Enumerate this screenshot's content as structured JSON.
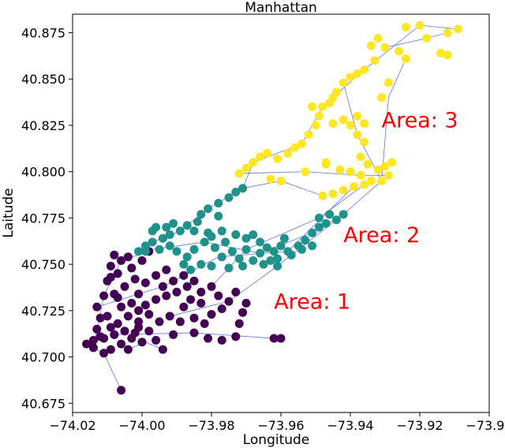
{
  "chart_data": {
    "type": "scatter",
    "title": "Manhattan",
    "xlabel": "Longitude",
    "ylabel": "Laitude",
    "xlim": [
      -74.02,
      -73.9
    ],
    "ylim": [
      40.67,
      40.885
    ],
    "xticks": [
      -74.02,
      -74.0,
      -73.98,
      -73.96,
      -73.94,
      -73.92,
      -73.9
    ],
    "xtick_labels": [
      "−74.02",
      "−74.00",
      "−73.98",
      "−73.96",
      "−73.94",
      "−73.92",
      "−73.90"
    ],
    "yticks": [
      40.675,
      40.7,
      40.725,
      40.75,
      40.775,
      40.8,
      40.825,
      40.85,
      40.875
    ],
    "ytick_labels": [
      "40.675",
      "40.700",
      "40.725",
      "40.750",
      "40.775",
      "40.800",
      "40.825",
      "40.850",
      "40.875"
    ],
    "grid": false,
    "route_color": "#4f5fe0",
    "series": [
      {
        "color": "#440154",
        "points": [
          [
            -74.006,
            40.682
          ],
          [
            -74.016,
            40.707
          ],
          [
            -74.014,
            40.709
          ],
          [
            -74.012,
            40.711
          ],
          [
            -74.014,
            40.705
          ],
          [
            -74.013,
            40.715
          ],
          [
            -74.011,
            40.71
          ],
          [
            -74.009,
            40.716
          ],
          [
            -74.012,
            40.721
          ],
          [
            -74.013,
            40.727
          ],
          [
            -74.01,
            40.722
          ],
          [
            -74.011,
            40.733
          ],
          [
            -74.008,
            40.734
          ],
          [
            -74.01,
            40.741
          ],
          [
            -74.007,
            40.745
          ],
          [
            -74.009,
            40.749
          ],
          [
            -74.006,
            40.752
          ],
          [
            -74.008,
            40.755
          ],
          [
            -74.004,
            40.754
          ],
          [
            -74.003,
            40.748
          ],
          [
            -74.0,
            40.752
          ],
          [
            -73.998,
            40.757
          ],
          [
            -74.005,
            40.738
          ],
          [
            -74.002,
            40.742
          ],
          [
            -74.001,
            40.734
          ],
          [
            -73.999,
            40.74
          ],
          [
            -73.996,
            40.744
          ],
          [
            -73.993,
            40.747
          ],
          [
            -73.994,
            40.738
          ],
          [
            -73.991,
            40.741
          ],
          [
            -73.988,
            40.744
          ],
          [
            -73.99,
            40.735
          ],
          [
            -73.987,
            40.738
          ],
          [
            -73.985,
            40.741
          ],
          [
            -73.983,
            40.735
          ],
          [
            -73.98,
            40.738
          ],
          [
            -73.978,
            40.733
          ],
          [
            -73.975,
            40.73
          ],
          [
            -73.973,
            40.735
          ],
          [
            -73.977,
            40.726
          ],
          [
            -73.983,
            40.729
          ],
          [
            -73.986,
            40.731
          ],
          [
            -73.996,
            40.731
          ],
          [
            -74.003,
            40.729
          ],
          [
            -74.006,
            40.727
          ],
          [
            -74.004,
            40.722
          ],
          [
            -74.001,
            40.725
          ],
          [
            -73.998,
            40.723
          ],
          [
            -73.995,
            40.719
          ],
          [
            -73.992,
            40.722
          ],
          [
            -73.989,
            40.719
          ],
          [
            -73.985,
            40.721
          ],
          [
            -73.982,
            40.718
          ],
          [
            -74.007,
            40.718
          ],
          [
            -74.005,
            40.714
          ],
          [
            -74.001,
            40.716
          ],
          [
            -73.998,
            40.714
          ],
          [
            -74.008,
            40.712
          ],
          [
            -74.003,
            40.71
          ],
          [
            -74.0,
            40.708
          ],
          [
            -73.996,
            40.709
          ],
          [
            -73.991,
            40.712
          ],
          [
            -73.985,
            40.713
          ],
          [
            -73.981,
            40.71
          ],
          [
            -73.977,
            40.709
          ],
          [
            -73.973,
            40.711
          ],
          [
            -73.972,
            40.718
          ],
          [
            -73.971,
            40.724
          ],
          [
            -73.97,
            40.729
          ],
          [
            -73.962,
            40.71
          ],
          [
            -73.96,
            40.71
          ],
          [
            -73.994,
            40.704
          ],
          [
            -74.011,
            40.702
          ],
          [
            -74.009,
            40.704
          ],
          [
            -74.006,
            40.707
          ],
          [
            -74.004,
            40.704
          ],
          [
            -74.002,
            40.713
          ],
          [
            -73.999,
            40.728
          ],
          [
            -73.993,
            40.733
          ],
          [
            -73.98,
            40.723
          ],
          [
            -74.007,
            40.732
          ],
          [
            -74.009,
            40.743
          ],
          [
            -74.001,
            40.719
          ],
          [
            -73.988,
            40.727
          ]
        ]
      },
      {
        "color": "#21918c",
        "points": [
          [
            -74.001,
            40.757
          ],
          [
            -73.999,
            40.76
          ],
          [
            -73.997,
            40.762
          ],
          [
            -73.994,
            40.764
          ],
          [
            -73.995,
            40.758
          ],
          [
            -73.992,
            40.76
          ],
          [
            -73.99,
            40.757
          ],
          [
            -73.987,
            40.754
          ],
          [
            -73.985,
            40.758
          ],
          [
            -73.982,
            40.762
          ],
          [
            -73.98,
            40.765
          ],
          [
            -73.979,
            40.759
          ],
          [
            -73.976,
            40.762
          ],
          [
            -73.977,
            40.754
          ],
          [
            -73.974,
            40.757
          ],
          [
            -73.972,
            40.753
          ],
          [
            -73.975,
            40.748
          ],
          [
            -73.971,
            40.749
          ],
          [
            -73.968,
            40.752
          ],
          [
            -73.966,
            40.756
          ],
          [
            -73.964,
            40.759
          ],
          [
            -73.962,
            40.757
          ],
          [
            -73.96,
            40.76
          ],
          [
            -73.958,
            40.757
          ],
          [
            -73.961,
            40.753
          ],
          [
            -73.957,
            40.755
          ],
          [
            -73.955,
            40.76
          ],
          [
            -73.953,
            40.763
          ],
          [
            -73.951,
            40.767
          ],
          [
            -73.949,
            40.77
          ],
          [
            -73.947,
            40.772
          ],
          [
            -73.944,
            40.774
          ],
          [
            -73.942,
            40.777
          ],
          [
            -73.949,
            40.775
          ],
          [
            -73.946,
            40.777
          ],
          [
            -73.951,
            40.76
          ],
          [
            -73.965,
            40.75
          ],
          [
            -73.961,
            40.749
          ],
          [
            -73.989,
            40.768
          ],
          [
            -73.987,
            40.771
          ],
          [
            -73.984,
            40.773
          ],
          [
            -73.983,
            40.777
          ],
          [
            -73.981,
            40.78
          ],
          [
            -73.978,
            40.783
          ],
          [
            -73.975,
            40.786
          ],
          [
            -73.973,
            40.789
          ],
          [
            -73.971,
            40.791
          ],
          [
            -73.991,
            40.772
          ],
          [
            -73.993,
            40.77
          ],
          [
            -73.996,
            40.77
          ],
          [
            -73.985,
            40.768
          ],
          [
            -73.981,
            40.767
          ],
          [
            -73.977,
            40.768
          ],
          [
            -73.973,
            40.766
          ],
          [
            -73.97,
            40.764
          ],
          [
            -73.968,
            40.766
          ],
          [
            -73.966,
            40.762
          ],
          [
            -73.983,
            40.75
          ],
          [
            -73.98,
            40.749
          ],
          [
            -73.988,
            40.75
          ],
          [
            -73.986,
            40.747
          ],
          [
            -73.97,
            40.758
          ],
          [
            -73.997,
            40.768
          ],
          [
            -73.959,
            40.764
          ],
          [
            -73.954,
            40.758
          ],
          [
            -73.999,
            40.757
          ],
          [
            -73.992,
            40.766
          ],
          [
            -73.978,
            40.776
          ],
          [
            -73.963,
            40.752
          ]
        ]
      },
      {
        "color": "#fde725",
        "points": [
          [
            -73.972,
            40.799
          ],
          [
            -73.97,
            40.802
          ],
          [
            -73.968,
            40.805
          ],
          [
            -73.966,
            40.808
          ],
          [
            -73.964,
            40.81
          ],
          [
            -73.961,
            40.807
          ],
          [
            -73.963,
            40.796
          ],
          [
            -73.96,
            40.795
          ],
          [
            -73.958,
            40.81
          ],
          [
            -73.956,
            40.813
          ],
          [
            -73.954,
            40.815
          ],
          [
            -73.952,
            40.82
          ],
          [
            -73.95,
            40.825
          ],
          [
            -73.949,
            40.83
          ],
          [
            -73.948,
            40.835
          ],
          [
            -73.946,
            40.837
          ],
          [
            -73.945,
            40.84
          ],
          [
            -73.944,
            40.843
          ],
          [
            -73.942,
            40.848
          ],
          [
            -73.94,
            40.851
          ],
          [
            -73.938,
            40.853
          ],
          [
            -73.936,
            40.855
          ],
          [
            -73.94,
            40.825
          ],
          [
            -73.942,
            40.828
          ],
          [
            -73.945,
            40.826
          ],
          [
            -73.938,
            40.83
          ],
          [
            -73.936,
            40.826
          ],
          [
            -73.938,
            40.82
          ],
          [
            -73.936,
            40.816
          ],
          [
            -73.937,
            40.808
          ],
          [
            -73.935,
            40.804
          ],
          [
            -73.932,
            40.801
          ],
          [
            -73.93,
            40.803
          ],
          [
            -73.929,
            40.798
          ],
          [
            -73.931,
            40.795
          ],
          [
            -73.934,
            40.795
          ],
          [
            -73.937,
            40.798
          ],
          [
            -73.94,
            40.8
          ],
          [
            -73.943,
            40.801
          ],
          [
            -73.947,
            40.804
          ],
          [
            -73.953,
            40.8
          ],
          [
            -73.948,
            40.787
          ],
          [
            -73.945,
            40.788
          ],
          [
            -73.942,
            40.79
          ],
          [
            -73.939,
            40.792
          ],
          [
            -73.936,
            40.793
          ],
          [
            -73.931,
            40.84
          ],
          [
            -73.929,
            40.848
          ],
          [
            -73.934,
            40.868
          ],
          [
            -73.932,
            40.872
          ],
          [
            -73.93,
            40.867
          ],
          [
            -73.926,
            40.865
          ],
          [
            -73.924,
            40.878
          ],
          [
            -73.92,
            40.879
          ],
          [
            -73.918,
            40.872
          ],
          [
            -73.912,
            40.875
          ],
          [
            -73.909,
            40.877
          ],
          [
            -73.914,
            40.864
          ],
          [
            -73.912,
            40.863
          ],
          [
            -73.924,
            40.861
          ],
          [
            -73.947,
            40.805
          ],
          [
            -73.951,
            40.835
          ],
          [
            -73.933,
            40.86
          ],
          [
            -73.928,
            40.805
          ]
        ]
      }
    ],
    "routes": [
      [
        [
          -74.006,
          40.682
        ],
        [
          -74.011,
          40.702
        ],
        [
          -74.016,
          40.707
        ]
      ],
      [
        [
          -74.014,
          40.705
        ],
        [
          -74.011,
          40.733
        ],
        [
          -74.006,
          40.752
        ],
        [
          -73.998,
          40.757
        ]
      ],
      [
        [
          -74.008,
          40.712
        ],
        [
          -73.985,
          40.713
        ],
        [
          -73.962,
          40.71
        ],
        [
          -73.96,
          40.71
        ]
      ],
      [
        [
          -74.001,
          40.757
        ],
        [
          -73.982,
          40.762
        ],
        [
          -73.966,
          40.756
        ],
        [
          -73.951,
          40.767
        ],
        [
          -73.942,
          40.777
        ]
      ],
      [
        [
          -73.997,
          40.762
        ],
        [
          -73.989,
          40.768
        ],
        [
          -73.981,
          40.78
        ],
        [
          -73.971,
          40.791
        ],
        [
          -73.96,
          40.795
        ],
        [
          -73.948,
          40.787
        ]
      ],
      [
        [
          -73.971,
          40.791
        ],
        [
          -73.968,
          40.805
        ],
        [
          -73.954,
          40.815
        ],
        [
          -73.948,
          40.835
        ],
        [
          -73.936,
          40.855
        ],
        [
          -73.92,
          40.879
        ],
        [
          -73.909,
          40.877
        ]
      ],
      [
        [
          -73.972,
          40.799
        ],
        [
          -73.953,
          40.8
        ],
        [
          -73.937,
          40.798
        ],
        [
          -73.929,
          40.798
        ]
      ],
      [
        [
          -73.942,
          40.848
        ],
        [
          -73.938,
          40.82
        ],
        [
          -73.931,
          40.795
        ],
        [
          -73.929,
          40.84
        ],
        [
          -73.924,
          40.861
        ]
      ],
      [
        [
          -73.992,
          40.722
        ],
        [
          -73.975,
          40.73
        ],
        [
          -73.961,
          40.749
        ],
        [
          -73.942,
          40.777
        ],
        [
          -73.931,
          40.795
        ]
      ],
      [
        [
          -74.013,
          40.727
        ],
        [
          -73.994,
          40.738
        ],
        [
          -73.978,
          40.754
        ],
        [
          -73.958,
          40.757
        ],
        [
          -73.939,
          40.792
        ]
      ],
      [
        [
          -73.98,
          40.738
        ],
        [
          -73.97,
          40.758
        ],
        [
          -73.949,
          40.775
        ],
        [
          -73.936,
          40.793
        ]
      ],
      [
        [
          -73.994,
          40.704
        ],
        [
          -73.999,
          40.708
        ],
        [
          -74.004,
          40.704
        ]
      ],
      [
        [
          -73.93,
          40.867
        ],
        [
          -73.918,
          40.872
        ],
        [
          -73.912,
          40.875
        ]
      ]
    ],
    "annotations": [
      {
        "text": "Area: 1",
        "x": -73.962,
        "y": 40.726,
        "color": "#ff0000"
      },
      {
        "text": "Area: 2",
        "x": -73.942,
        "y": 40.762,
        "color": "#ff0000"
      },
      {
        "text": "Area: 3",
        "x": -73.931,
        "y": 40.824,
        "color": "#ff0000"
      }
    ]
  }
}
